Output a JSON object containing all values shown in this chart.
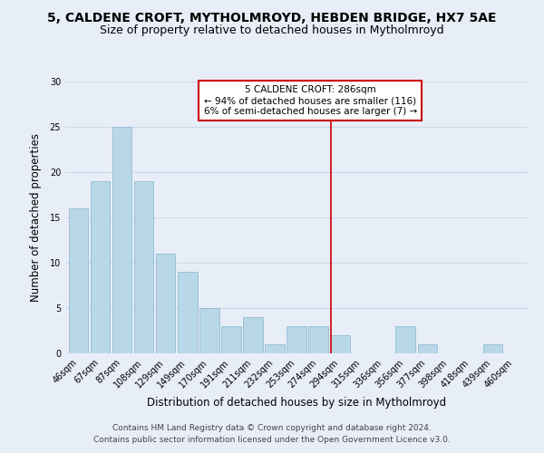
{
  "title": "5, CALDENE CROFT, MYTHOLMROYD, HEBDEN BRIDGE, HX7 5AE",
  "subtitle": "Size of property relative to detached houses in Mytholmroyd",
  "xlabel": "Distribution of detached houses by size in Mytholmroyd",
  "ylabel": "Number of detached properties",
  "bar_color": "#b8d8e8",
  "bar_edge_color": "#8ab4cc",
  "categories": [
    "46sqm",
    "67sqm",
    "87sqm",
    "108sqm",
    "129sqm",
    "149sqm",
    "170sqm",
    "191sqm",
    "211sqm",
    "232sqm",
    "253sqm",
    "274sqm",
    "294sqm",
    "315sqm",
    "336sqm",
    "356sqm",
    "377sqm",
    "398sqm",
    "418sqm",
    "439sqm",
    "460sqm"
  ],
  "values": [
    16,
    19,
    25,
    19,
    11,
    9,
    5,
    3,
    4,
    1,
    3,
    3,
    2,
    0,
    0,
    3,
    1,
    0,
    0,
    1,
    0
  ],
  "ylim": [
    0,
    30
  ],
  "yticks": [
    0,
    5,
    10,
    15,
    20,
    25,
    30
  ],
  "vline_color": "#cc0000",
  "annotation_title": "5 CALDENE CROFT: 286sqm",
  "annotation_line1": "← 94% of detached houses are smaller (116)",
  "annotation_line2": "6% of semi-detached houses are larger (7) →",
  "footer1": "Contains HM Land Registry data © Crown copyright and database right 2024.",
  "footer2": "Contains public sector information licensed under the Open Government Licence v3.0.",
  "bg_color": "#e8eef8",
  "grid_color": "#d0d8e8",
  "title_fontsize": 10,
  "subtitle_fontsize": 9,
  "tick_fontsize": 7,
  "label_fontsize": 8.5,
  "footer_fontsize": 6.5
}
